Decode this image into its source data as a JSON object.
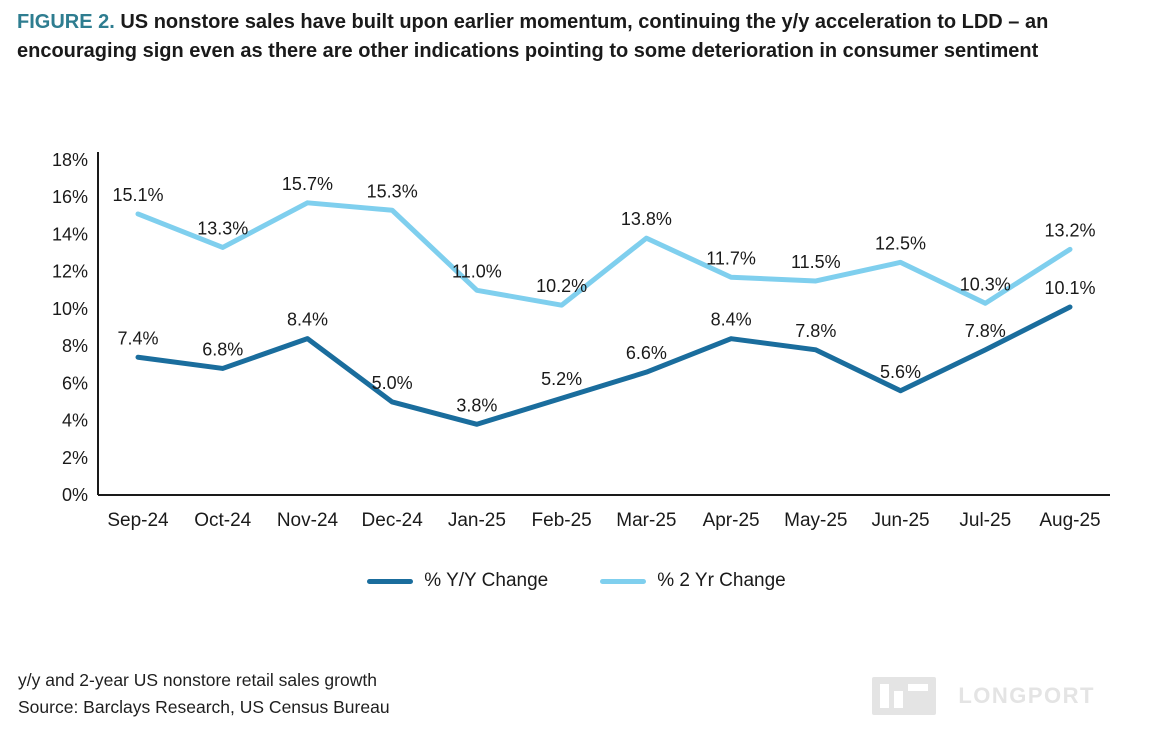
{
  "figure": {
    "label": "FIGURE 2.",
    "title": "US nonstore sales have built upon earlier momentum, continuing the y/y acceleration to LDD – an encouraging sign even as there are other indications pointing to some deterioration in consumer sentiment"
  },
  "chart_data": {
    "type": "line",
    "categories": [
      "Sep-24",
      "Oct-24",
      "Nov-24",
      "Dec-24",
      "Jan-25",
      "Feb-25",
      "Mar-25",
      "Apr-25",
      "May-25",
      "Jun-25",
      "Jul-25",
      "Aug-25"
    ],
    "series": [
      {
        "name": "% Y/Y Change",
        "color": "#1a6d9d",
        "values": [
          7.4,
          6.8,
          8.4,
          5.0,
          3.8,
          5.2,
          6.6,
          8.4,
          7.8,
          5.6,
          7.8,
          10.1
        ]
      },
      {
        "name": "% 2 Yr Change",
        "color": "#7fcfee",
        "values": [
          15.1,
          13.3,
          15.7,
          15.3,
          11.0,
          10.2,
          13.8,
          11.7,
          11.5,
          12.5,
          10.3,
          13.2
        ]
      }
    ],
    "ylim": [
      0,
      18
    ],
    "ytick_step": 2,
    "ytick_suffix": "%",
    "grid": false,
    "legend_position": "bottom",
    "data_labels": true,
    "title": "",
    "xlabel": "",
    "ylabel": ""
  },
  "footer": {
    "caption": "y/y and 2-year US nonstore retail sales growth",
    "source": "Source: Barclays Research, US Census Bureau"
  },
  "watermark": {
    "text": "LONGPORT"
  },
  "colors": {
    "figure_label": "#2e7d90",
    "title_text": "#1a1a1a",
    "axis": "#1a1a1a",
    "yy_line": "#1a6d9d",
    "two_yr_line": "#7fcfee",
    "watermark": "#e4e4e4"
  }
}
